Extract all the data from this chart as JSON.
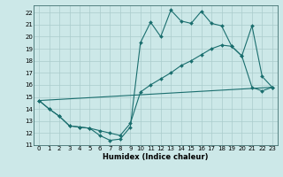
{
  "xlabel": "Humidex (Indice chaleur)",
  "bg_color": "#cce8e8",
  "grid_color": "#aacccc",
  "line_color": "#1a6e6e",
  "xlim": [
    -0.5,
    23.5
  ],
  "ylim": [
    11,
    22.6
  ],
  "xticks": [
    0,
    1,
    2,
    3,
    4,
    5,
    6,
    7,
    8,
    9,
    10,
    11,
    12,
    13,
    14,
    15,
    16,
    17,
    18,
    19,
    20,
    21,
    22,
    23
  ],
  "yticks": [
    11,
    12,
    13,
    14,
    15,
    16,
    17,
    18,
    19,
    20,
    21,
    22
  ],
  "series": [
    {
      "x": [
        0,
        1,
        2,
        3,
        4,
        5,
        6,
        7,
        8,
        9,
        10,
        11,
        12,
        13,
        14,
        15,
        16,
        17,
        18,
        19,
        20,
        21,
        22,
        23
      ],
      "y": [
        14.7,
        14.0,
        13.4,
        12.6,
        12.5,
        12.4,
        11.8,
        11.4,
        11.5,
        12.5,
        19.5,
        21.2,
        20.0,
        22.2,
        21.3,
        21.1,
        22.1,
        21.1,
        20.9,
        19.2,
        18.4,
        20.9,
        16.7,
        15.8
      ],
      "markers": true
    },
    {
      "x": [
        0,
        1,
        2,
        3,
        4,
        5,
        6,
        7,
        8,
        9,
        10,
        11,
        12,
        13,
        14,
        15,
        16,
        17,
        18,
        19,
        20,
        21,
        22,
        23
      ],
      "y": [
        14.7,
        14.0,
        13.4,
        12.6,
        12.5,
        12.4,
        12.2,
        12.0,
        11.8,
        12.8,
        15.4,
        16.0,
        16.5,
        17.0,
        17.6,
        18.0,
        18.5,
        19.0,
        19.3,
        19.2,
        18.4,
        15.8,
        15.5,
        15.8
      ],
      "markers": true
    },
    {
      "x": [
        0,
        23
      ],
      "y": [
        14.7,
        15.8
      ],
      "markers": false
    }
  ]
}
